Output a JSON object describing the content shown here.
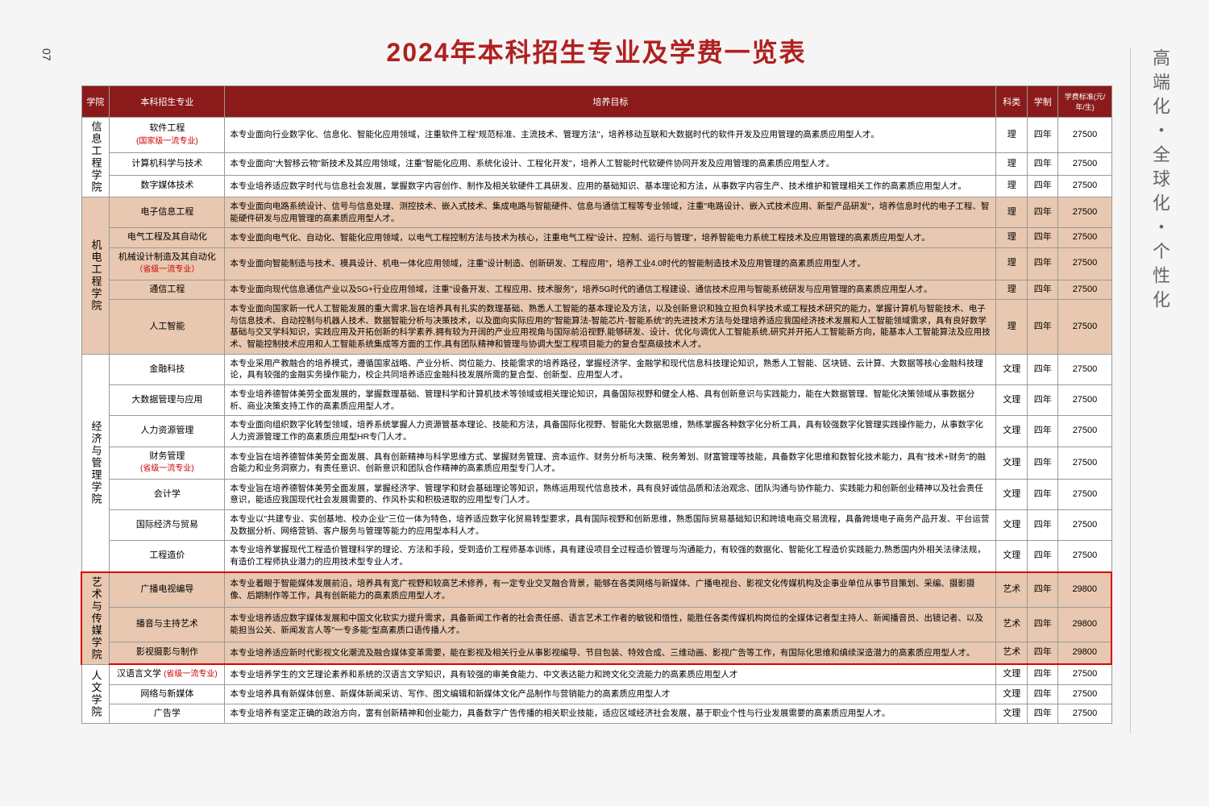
{
  "page_number": "07",
  "side_text": "高端化・全球化・个性化",
  "title": "2024年本科招生专业及学费一览表",
  "headers": {
    "college": "学院",
    "major": "本科招生专业",
    "goal": "培养目标",
    "category": "科类",
    "duration": "学制",
    "fee": "学费标准(元/年/生)"
  },
  "colleges": [
    {
      "name": "信息工程学院",
      "bg": "bg-white",
      "majors": [
        {
          "name": "软件工程",
          "sub": "(国家级一流专业)",
          "desc": "本专业面向行业数字化、信息化、智能化应用领域，注重软件工程\"规范标准、主流技术、管理方法\"，培养移动互联和大数据时代的软件开发及应用管理的高素质应用型人才。",
          "cat": "理",
          "dur": "四年",
          "fee": "27500"
        },
        {
          "name": "计算机科学与技术",
          "sub": "",
          "desc": "本专业面向\"大智移云物\"新技术及其应用领域，注重\"智能化应用、系统化设计、工程化开发\"，培养人工智能时代软硬件协同开发及应用管理的高素质应用型人才。",
          "cat": "理",
          "dur": "四年",
          "fee": "27500"
        },
        {
          "name": "数字媒体技术",
          "sub": "",
          "desc": "本专业培养适应数字时代与信息社会发展，掌握数字内容创作、制作及相关软硬件工具研发、应用的基础知识、基本理论和方法，从事数字内容生产、技术维护和管理相关工作的高素质应用型人才。",
          "cat": "理",
          "dur": "四年",
          "fee": "27500"
        }
      ]
    },
    {
      "name": "机电工程学院",
      "bg": "bg-tan",
      "majors": [
        {
          "name": "电子信息工程",
          "sub": "",
          "desc": "本专业面向电路系统设计、信号与信息处理、测控技术、嵌入式技术、集成电路与智能硬件、信息与通信工程等专业领域，注重\"电路设计、嵌入式技术应用、新型产品研发\"，培养信息时代的电子工程、智能硬件研发与应用管理的高素质应用型人才。",
          "cat": "理",
          "dur": "四年",
          "fee": "27500"
        },
        {
          "name": "电气工程及其自动化",
          "sub": "",
          "desc": "本专业面向电气化、自动化、智能化应用领域，以电气工程控制方法与技术为核心，注重电气工程\"设计、控制、运行与管理\"，培养智能电力系统工程技术及应用管理的高素质应用型人才。",
          "cat": "理",
          "dur": "四年",
          "fee": "27500"
        },
        {
          "name": "机械设计制造及其自动化",
          "sub": "（省级一流专业）",
          "desc": "本专业面向智能制造与技术、模具设计、机电一体化应用领域，注重\"设计制造、创新研发、工程应用\"，培养工业4.0时代的智能制造技术及应用管理的高素质应用型人才。",
          "cat": "理",
          "dur": "四年",
          "fee": "27500"
        },
        {
          "name": "通信工程",
          "sub": "",
          "desc": "本专业面向现代信息通信产业以及5G+行业应用领域，注重\"设备开发、工程应用、技术服务\"，培养5G时代的通信工程建设、通信技术应用与智能系统研发与应用管理的高素质应用型人才。",
          "cat": "理",
          "dur": "四年",
          "fee": "27500"
        },
        {
          "name": "人工智能",
          "sub": "",
          "desc": "本专业面向国家新一代人工智能发展的重大需求,旨在培养具有扎实的数理基础、熟悉人工智能的基本理论及方法，以及创新意识和独立担负科学技术或工程技术研究的能力，掌握计算机与智能技术、电子与信息技术、自动控制与机器人技术、数据智能分析与决策技术，以及面向实际应用的\"智能算法-智能芯片-智能系统\"的先进技术方法与处理培养适应我国经济技术发展和人工智能领域需求，具有良好数学基础与交叉学科知识，实践应用及开拓创新的科学素养,拥有较为开阔的产业应用视角与国际前沿视野,能够研发、设计、优化与调优人工智能系统,研究并开拓人工智能新方向，能基本人工智能算法及应用技术、智能控制技术应用和人工智能系统集成等方面的工作,具有团队精神和管理与协调大型工程项目能力的复合型高级技术人才。",
          "cat": "理",
          "dur": "四年",
          "fee": "27500"
        }
      ]
    },
    {
      "name": "经济与管理学院",
      "bg": "bg-white",
      "majors": [
        {
          "name": "金融科技",
          "sub": "",
          "desc": "本专业采用产教融合的培养模式，遵循国家战略、产业分析、岗位能力、技能需求的培养路径，掌握经济学、金融学和现代信息科技理论知识，熟悉人工智能、区块链、云计算、大数据等核心金融科技理论，具有较强的金融实务操作能力，校企共同培养适应金融科技发展所需的复合型、创新型、应用型人才。",
          "cat": "文理",
          "dur": "四年",
          "fee": "27500"
        },
        {
          "name": "大数据管理与应用",
          "sub": "",
          "desc": "本专业培养德智体美劳全面发展的，掌握数理基础、管理科学和计算机技术等领域或相关理论知识，具备国际视野和健全人格、具有创新意识与实践能力，能在大数据管理、智能化决策领域从事数据分析、商业决策支持工作的高素质应用型人才。",
          "cat": "文理",
          "dur": "四年",
          "fee": "27500"
        },
        {
          "name": "人力资源管理",
          "sub": "",
          "desc": "本专业面向组织数字化转型领域，培养系统掌握人力资源管基本理论、技能和方法，具备国际化视野、智能化大数据思维，熟练掌握各种数字化分析工具，具有较强数字化管理实践操作能力，从事数字化人力资源管理工作的高素质应用型HR专门人才。",
          "cat": "文理",
          "dur": "四年",
          "fee": "27500"
        },
        {
          "name": "财务管理",
          "sub": "(省级一流专业)",
          "desc": "本专业旨在培养德智体美劳全面发展、具有创新精神与科学思维方式、掌握财务管理、资本运作、财务分析与决策、税务筹划、财富管理等技能，具备数字化思维和数智化技术能力，具有\"技术+财务\"的融合能力和业务洞察力，有责任意识、创新意识和团队合作精神的高素质应用型专门人才。",
          "cat": "文理",
          "dur": "四年",
          "fee": "27500"
        },
        {
          "name": "会计学",
          "sub": "",
          "desc": "本专业旨在培养德智体美劳全面发展，掌握经济学、管理学和财会基础理论等知识，熟练运用现代信息技术，具有良好诚信品质和法治观念、团队沟通与协作能力、实践能力和创新创业精神以及社会责任意识，能适应我国现代社会发展需要的、作风朴实和积极进取的应用型专门人才。",
          "cat": "文理",
          "dur": "四年",
          "fee": "27500"
        },
        {
          "name": "国际经济与贸易",
          "sub": "",
          "desc": "本专业以\"共建专业、实创基地、校办企业\"三位一体为特色，培养适应数字化贸易转型要求，具有国际视野和创新思维，熟悉国际贸易基础知识和跨境电商交易流程，具备跨境电子商务产品开发、平台运营及数据分析、网络营销、客户服务与管理等能力的应用型本科人才。",
          "cat": "文理",
          "dur": "四年",
          "fee": "27500"
        },
        {
          "name": "工程造价",
          "sub": "",
          "desc": "本专业培养掌握现代工程造价管理科学的理论、方法和手段，受到造价工程师基本训练，具有建设项目全过程造价管理与沟通能力，有较强的数据化、智能化工程造价实践能力,熟悉国内外相关法律法规，有造价工程师执业潜力的应用技术型专业人才。",
          "cat": "文理",
          "dur": "四年",
          "fee": "27500"
        }
      ]
    },
    {
      "name": "艺术与传媒学院",
      "bg": "bg-tan",
      "highlight": true,
      "majors": [
        {
          "name": "广播电视编导",
          "sub": "",
          "desc": "本专业着眼于智能媒体发展前沿，培养具有宽广视野和较高艺术修养，有一定专业交叉融合背景，能够在各类网络与新媒体、广播电视台、影视文化传媒机构及企事业单位从事节目策划、采编、摄影摄像、后期制作等工作，具有创新能力的高素质应用型人才。",
          "cat": "艺术",
          "dur": "四年",
          "fee": "29800"
        },
        {
          "name": "播音与主持艺术",
          "sub": "",
          "desc": "本专业培养适应数字媒体发展和中国文化软实力提升需求，具备新闻工作者的社会责任感、语言艺术工作者的敏锐和悟性，能胜任各类传媒机构岗位的全媒体记者型主持人、新闻播音员、出镜记者、以及能担当公关、新闻发言人等\"一专多能\"型高素质口语传播人才。",
          "cat": "艺术",
          "dur": "四年",
          "fee": "29800"
        },
        {
          "name": "影视摄影与制作",
          "sub": "",
          "desc": "本专业培养适应新时代影视文化潮流及融合媒体变革需要，能在影视及相关行业从事影视编导、节目包装、特效合成、三维动画、影视广告等工作，有国际化思维和缜续深造潜力的高素质应用型人才。",
          "cat": "艺术",
          "dur": "四年",
          "fee": "29800"
        }
      ]
    },
    {
      "name": "人文学院",
      "bg": "bg-white",
      "majors": [
        {
          "name": "汉语言文学",
          "sub": "(省级一流专业)",
          "inline_sub": true,
          "desc": "本专业培养学生的文艺理论素养和系统的汉语言文学知识，具有较强的审美食能力、中文表达能力和跨文化交流能力的高素质应用型人才",
          "cat": "文理",
          "dur": "四年",
          "fee": "27500"
        },
        {
          "name": "网络与新媒体",
          "sub": "",
          "desc": "本专业培养具有新媒体创意、新媒体新闻采访、写作、图文编辑和新媒体文化产品制作与营销能力的高素质应用型人才",
          "cat": "文理",
          "dur": "四年",
          "fee": "27500"
        },
        {
          "name": "广告学",
          "sub": "",
          "desc": "本专业培养有坚定正确的政治方向，富有创新精神和创业能力，具备数字广告传播的相关职业技能，适应区域经济社会发展，基于职业个性与行业发展需要的高素质应用型人才。",
          "cat": "文理",
          "dur": "四年",
          "fee": "27500"
        }
      ]
    }
  ]
}
